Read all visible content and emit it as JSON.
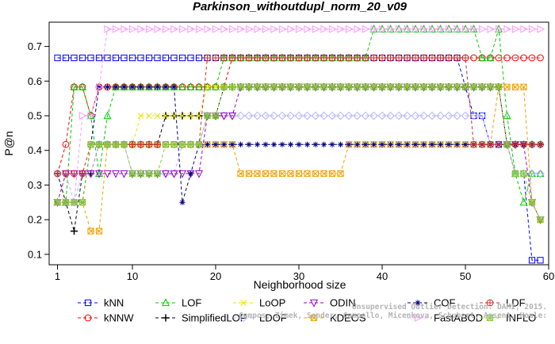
{
  "chart_data": {
    "type": "line",
    "title": "Parkinson_withoutdupl_norm_20_v09",
    "xlabel": "Neighborhood size",
    "ylabel": "P@n",
    "xlim": [
      0,
      60
    ],
    "ylim": [
      0.07,
      0.77
    ],
    "xticks": [
      1,
      10,
      20,
      30,
      40,
      50,
      60
    ],
    "yticks": [
      0.1,
      0.2,
      0.3,
      0.4,
      0.5,
      0.6,
      0.7
    ],
    "x_start": 1,
    "legend_position": "bottom",
    "series": [
      {
        "name": "kNN",
        "color": "#0000ff",
        "marker": "square",
        "values": [
          0.667,
          0.667,
          0.667,
          0.667,
          0.667,
          0.667,
          0.667,
          0.667,
          0.667,
          0.667,
          0.667,
          0.667,
          0.667,
          0.667,
          0.667,
          0.667,
          0.667,
          0.667,
          0.667,
          0.667,
          0.667,
          0.667,
          0.667,
          0.667,
          0.667,
          0.667,
          0.667,
          0.667,
          0.667,
          0.667,
          0.667,
          0.667,
          0.667,
          0.667,
          0.667,
          0.667,
          0.667,
          0.667,
          0.667,
          0.667,
          0.667,
          0.667,
          0.667,
          0.667,
          0.667,
          0.667,
          0.667,
          0.667,
          0.667,
          0.583,
          0.5,
          0.5,
          0.417,
          0.417,
          0.417,
          0.333,
          0.333,
          0.083,
          0.083
        ]
      },
      {
        "name": "kNNW",
        "color": "#ff0000",
        "marker": "circle",
        "values": [
          0.333,
          0.417,
          0.583,
          0.583,
          0.5,
          0.583,
          0.583,
          0.583,
          0.583,
          0.583,
          0.583,
          0.583,
          0.583,
          0.583,
          0.583,
          0.583,
          0.583,
          0.583,
          0.583,
          0.583,
          0.583,
          0.667,
          0.667,
          0.667,
          0.667,
          0.667,
          0.667,
          0.667,
          0.667,
          0.667,
          0.667,
          0.667,
          0.667,
          0.667,
          0.667,
          0.667,
          0.667,
          0.667,
          0.667,
          0.667,
          0.667,
          0.667,
          0.667,
          0.667,
          0.667,
          0.667,
          0.667,
          0.667,
          0.667,
          0.667,
          0.667,
          0.667,
          0.667,
          0.667,
          0.667,
          0.667,
          0.667,
          0.667,
          0.667
        ]
      },
      {
        "name": "LOF",
        "color": "#00cc00",
        "marker": "triangle-up",
        "values": [
          0.25,
          0.25,
          0.583,
          0.583,
          0.5,
          0.333,
          0.5,
          0.583,
          0.583,
          0.583,
          0.583,
          0.583,
          0.583,
          0.583,
          0.583,
          0.583,
          0.583,
          0.583,
          0.583,
          0.583,
          0.667,
          0.667,
          0.667,
          0.667,
          0.667,
          0.667,
          0.667,
          0.667,
          0.667,
          0.667,
          0.667,
          0.667,
          0.667,
          0.667,
          0.667,
          0.667,
          0.667,
          0.667,
          0.75,
          0.75,
          0.75,
          0.75,
          0.75,
          0.75,
          0.75,
          0.75,
          0.75,
          0.75,
          0.75,
          0.75,
          0.75,
          0.667,
          0.667,
          0.75,
          0.5,
          0.333,
          0.25,
          0.333,
          0.333
        ]
      },
      {
        "name": "SimplifiedLOF",
        "color": "#000000",
        "marker": "plus",
        "values": [
          0.333,
          0.25,
          0.167,
          0.333,
          0.333,
          0.417,
          0.417,
          0.417,
          0.417,
          0.417,
          0.417,
          0.417,
          0.417,
          0.5,
          0.5,
          0.5,
          0.5,
          0.5,
          0.5,
          0.5,
          0.583,
          0.583,
          0.583,
          0.583,
          0.583,
          0.583,
          0.583,
          0.583,
          0.583,
          0.583,
          0.583,
          0.583,
          0.583,
          0.583,
          0.583,
          0.583,
          0.583,
          0.583,
          0.583,
          0.583,
          0.583,
          0.583,
          0.583,
          0.583,
          0.583,
          0.583,
          0.583,
          0.583,
          0.583,
          0.583,
          0.583,
          0.583,
          0.583,
          0.583,
          0.417,
          0.417,
          0.417,
          0.417,
          0.417
        ]
      },
      {
        "name": "LoOP",
        "color": "#e6e600",
        "marker": "x",
        "values": [
          0.25,
          0.25,
          0.25,
          0.25,
          0.417,
          0.417,
          0.417,
          0.417,
          0.417,
          0.417,
          0.5,
          0.5,
          0.5,
          0.5,
          0.5,
          0.5,
          0.5,
          0.5,
          0.583,
          0.583,
          0.583,
          0.583,
          0.583,
          0.583,
          0.583,
          0.583,
          0.583,
          0.583,
          0.583,
          0.583,
          0.583,
          0.583,
          0.583,
          0.583,
          0.583,
          0.583,
          0.583,
          0.583,
          0.583,
          0.583,
          0.583,
          0.583,
          0.583,
          0.583,
          0.583,
          0.583,
          0.583,
          0.583,
          0.583,
          0.583,
          0.583,
          0.583,
          0.583,
          0.583,
          0.417,
          0.417,
          0.417,
          0.417,
          0.417
        ]
      },
      {
        "name": "LDOF",
        "color": "#b3b3ff",
        "marker": "diamond",
        "values": [
          0.333,
          0.333,
          0.25,
          0.333,
          0.333,
          0.417,
          0.417,
          0.417,
          0.417,
          0.333,
          0.333,
          0.333,
          0.333,
          0.333,
          0.333,
          0.417,
          0.417,
          0.417,
          0.5,
          0.5,
          0.5,
          0.5,
          0.5,
          0.5,
          0.5,
          0.5,
          0.5,
          0.5,
          0.5,
          0.5,
          0.5,
          0.5,
          0.5,
          0.5,
          0.5,
          0.5,
          0.5,
          0.5,
          0.5,
          0.5,
          0.5,
          0.5,
          0.5,
          0.5,
          0.5,
          0.5,
          0.5,
          0.5,
          0.5,
          0.5,
          0.5,
          0.5,
          0.417,
          0.417,
          0.417,
          0.333,
          0.333,
          0.333,
          0.333
        ]
      },
      {
        "name": "ODIN",
        "color": "#9900cc",
        "marker": "triangle-down",
        "values": [
          0.25,
          0.333,
          0.333,
          0.333,
          0.333,
          0.333,
          0.333,
          0.333,
          0.333,
          0.333,
          0.333,
          0.333,
          0.333,
          0.333,
          0.333,
          0.333,
          0.333,
          0.333,
          0.5,
          0.5,
          0.5,
          0.5,
          0.583,
          0.583,
          0.583,
          0.583,
          0.583,
          0.583,
          0.583,
          0.583,
          0.583,
          0.583,
          0.583,
          0.583,
          0.583,
          0.583,
          0.583,
          0.583,
          0.583,
          0.583,
          0.583,
          0.583,
          0.583,
          0.583,
          0.583,
          0.583,
          0.583,
          0.583,
          0.583,
          0.583,
          0.583,
          0.583,
          0.583,
          0.583,
          0.417,
          0.417,
          0.417,
          0.25,
          0.2
        ]
      },
      {
        "name": "KDEOS",
        "color": "#f0a000",
        "marker": "square-x",
        "values": [
          0.25,
          0.25,
          0.25,
          0.25,
          0.167,
          0.167,
          0.417,
          0.417,
          0.417,
          0.417,
          0.417,
          0.417,
          0.417,
          0.417,
          0.417,
          0.417,
          0.417,
          0.417,
          0.417,
          0.417,
          0.417,
          0.417,
          0.333,
          0.333,
          0.333,
          0.333,
          0.333,
          0.333,
          0.333,
          0.333,
          0.333,
          0.333,
          0.333,
          0.333,
          0.333,
          0.417,
          0.417,
          0.417,
          0.417,
          0.417,
          0.417,
          0.417,
          0.417,
          0.417,
          0.417,
          0.417,
          0.417,
          0.417,
          0.417,
          0.417,
          0.417,
          0.417,
          0.417,
          0.583,
          0.583,
          0.583,
          0.583,
          0.25,
          0.2
        ]
      },
      {
        "name": "COF",
        "color": "#000080",
        "marker": "asterisk",
        "values": [
          0.25,
          0.25,
          0.25,
          0.25,
          0.417,
          0.583,
          0.583,
          0.583,
          0.583,
          0.583,
          0.583,
          0.583,
          0.583,
          0.583,
          0.583,
          0.25,
          0.333,
          0.417,
          0.417,
          0.417,
          0.417,
          0.417,
          0.417,
          0.417,
          0.417,
          0.417,
          0.417,
          0.417,
          0.417,
          0.417,
          0.417,
          0.417,
          0.417,
          0.417,
          0.417,
          0.417,
          0.417,
          0.417,
          0.417,
          0.417,
          0.417,
          0.417,
          0.417,
          0.417,
          0.417,
          0.417,
          0.417,
          0.417,
          0.417,
          0.417,
          0.417,
          0.417,
          0.417,
          0.417,
          0.417,
          0.417,
          0.417,
          0.417,
          0.417
        ]
      },
      {
        "name": "FastABOD",
        "color": "#ff99ff",
        "marker": "triangle-right",
        "values": [
          0.25,
          0.25,
          0.25,
          0.5,
          0.5,
          0.583,
          0.75,
          0.75,
          0.75,
          0.75,
          0.75,
          0.75,
          0.75,
          0.75,
          0.75,
          0.75,
          0.75,
          0.75,
          0.75,
          0.75,
          0.75,
          0.75,
          0.75,
          0.75,
          0.75,
          0.75,
          0.75,
          0.75,
          0.75,
          0.75,
          0.75,
          0.75,
          0.75,
          0.75,
          0.75,
          0.75,
          0.75,
          0.75,
          0.75,
          0.75,
          0.75,
          0.75,
          0.75,
          0.75,
          0.75,
          0.75,
          0.75,
          0.75,
          0.75,
          0.75,
          0.75,
          0.75,
          0.75,
          0.75,
          0.75,
          0.75,
          0.75,
          0.75,
          0.75
        ]
      },
      {
        "name": "LDF",
        "color": "#cc3333",
        "marker": "circle-plus",
        "values": [
          0.333,
          0.333,
          0.333,
          0.333,
          0.417,
          0.417,
          0.417,
          0.417,
          0.417,
          0.417,
          0.417,
          0.417,
          0.417,
          0.417,
          0.417,
          0.417,
          0.417,
          0.417,
          0.667,
          0.667,
          0.667,
          0.667,
          0.667,
          0.667,
          0.667,
          0.667,
          0.667,
          0.667,
          0.667,
          0.667,
          0.667,
          0.667,
          0.667,
          0.667,
          0.667,
          0.667,
          0.667,
          0.667,
          0.667,
          0.667,
          0.667,
          0.667,
          0.667,
          0.667,
          0.667,
          0.667,
          0.667,
          0.667,
          0.667,
          0.667,
          0.417,
          0.417,
          0.417,
          0.417,
          0.417,
          0.417,
          0.417,
          0.417,
          0.417
        ]
      },
      {
        "name": "INFLO",
        "color": "#80cc33",
        "marker": "star-box",
        "values": [
          0.25,
          0.25,
          0.25,
          0.25,
          0.417,
          0.417,
          0.417,
          0.417,
          0.417,
          0.333,
          0.333,
          0.333,
          0.333,
          0.417,
          0.417,
          0.417,
          0.417,
          0.417,
          0.5,
          0.5,
          0.583,
          0.583,
          0.583,
          0.583,
          0.583,
          0.583,
          0.583,
          0.583,
          0.583,
          0.583,
          0.583,
          0.583,
          0.583,
          0.583,
          0.583,
          0.583,
          0.583,
          0.583,
          0.583,
          0.583,
          0.583,
          0.583,
          0.583,
          0.583,
          0.583,
          0.583,
          0.583,
          0.583,
          0.583,
          0.583,
          0.583,
          0.583,
          0.583,
          0.583,
          0.417,
          0.333,
          0.333,
          0.25,
          0.2
        ]
      }
    ]
  },
  "watermark": "Campos, Zimek, Sander, Campello, Micenkova, Schubert, Assent, Houle: Unsupervised Outlier Detection. DAMI, 2015."
}
